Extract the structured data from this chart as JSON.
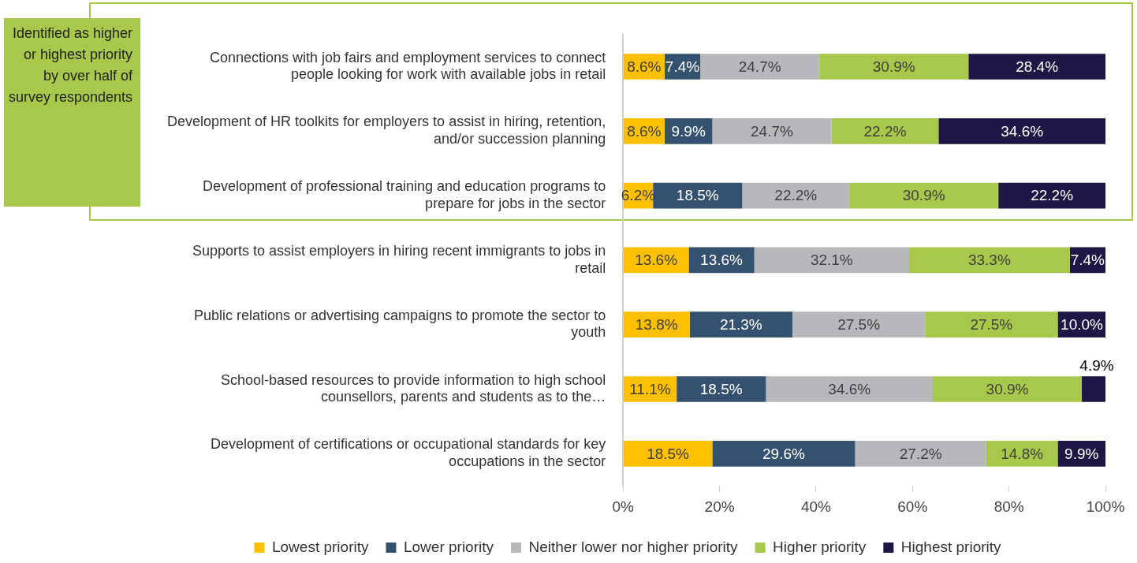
{
  "chart_data": {
    "type": "bar",
    "orientation": "horizontal",
    "stacked": true,
    "categories": [
      "Connections with job fairs and employment services to connect people looking for work with available jobs in retail",
      "Development of HR toolkits for employers to assist in hiring, retention, and/or succession planning",
      "Development of professional training and education programs to prepare for jobs in the sector",
      "Supports to assist employers in hiring recent immigrants to jobs in retail",
      "Public relations or advertising campaigns to promote the sector to youth",
      "School-based resources to provide information to high school counsellors, parents and students as to the…",
      "Development of certifications or occupational standards for key occupations in the sector"
    ],
    "series": [
      {
        "name": "Lowest priority",
        "color": "#ffc000",
        "values": [
          8.6,
          8.6,
          6.2,
          13.6,
          13.8,
          11.1,
          18.5
        ],
        "value_labels": [
          "8.6%",
          "8.6%",
          "6.2%",
          "13.6%",
          "13.8%",
          "11.1%",
          "18.5%"
        ]
      },
      {
        "name": "Lower priority",
        "color": "#34526f",
        "values": [
          7.4,
          9.9,
          18.5,
          13.6,
          21.3,
          18.5,
          29.6
        ],
        "value_labels": [
          "7.4%",
          "9.9%",
          "18.5%",
          "13.6%",
          "21.3%",
          "18.5%",
          "29.6%"
        ]
      },
      {
        "name": "Neither lower nor higher priority",
        "color": "#b7b8bb",
        "values": [
          24.7,
          24.7,
          22.2,
          32.1,
          27.5,
          34.6,
          27.2
        ],
        "value_labels": [
          "24.7%",
          "24.7%",
          "22.2%",
          "32.1%",
          "27.5%",
          "34.6%",
          "27.2%"
        ]
      },
      {
        "name": "Higher priority",
        "color": "#a7c84a",
        "values": [
          30.9,
          22.2,
          30.9,
          33.3,
          27.5,
          30.9,
          14.8
        ],
        "value_labels": [
          "30.9%",
          "22.2%",
          "30.9%",
          "33.3%",
          "27.5%",
          "30.9%",
          "14.8%"
        ]
      },
      {
        "name": "Highest priority",
        "color": "#1f1645",
        "values": [
          28.4,
          34.6,
          22.2,
          7.4,
          10.0,
          4.9,
          9.9
        ],
        "value_labels": [
          "28.4%",
          "34.6%",
          "22.2%",
          "7.4%",
          "10.0%",
          "4.9%",
          "9.9%"
        ]
      }
    ],
    "xlim": [
      0,
      100
    ],
    "xticks": [
      {
        "value": 0,
        "label": "0%"
      },
      {
        "value": 20,
        "label": "20%"
      },
      {
        "value": 40,
        "label": "40%"
      },
      {
        "value": 60,
        "label": "60%"
      },
      {
        "value": 80,
        "label": "80%"
      },
      {
        "value": 100,
        "label": "100%"
      }
    ],
    "legend": "bottom",
    "annotations": [
      "Identified as higher or highest priority by over half of survey respondents"
    ]
  }
}
